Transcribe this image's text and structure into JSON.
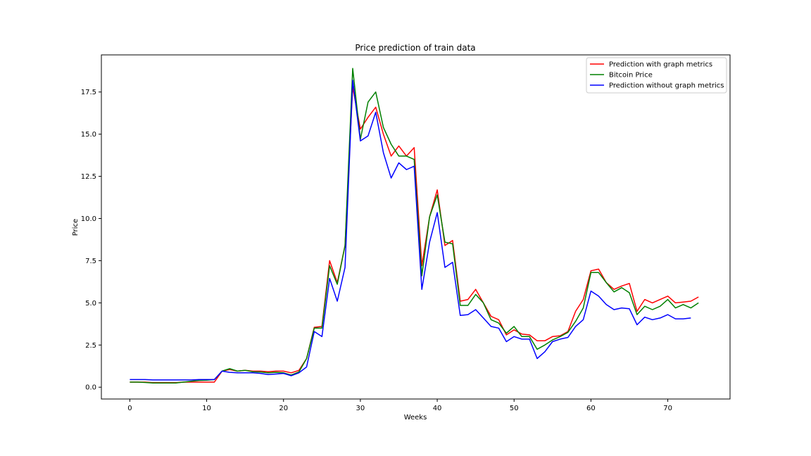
{
  "chart_data": {
    "type": "line",
    "title": "Price prediction of train data",
    "xlabel": "Weeks",
    "ylabel": "Price",
    "xlim": [
      -3.7,
      78.1
    ],
    "ylim": [
      -0.7,
      19.7
    ],
    "xticks": [
      0,
      10,
      20,
      30,
      40,
      50,
      60,
      70
    ],
    "yticks": [
      0.0,
      2.5,
      5.0,
      7.5,
      10.0,
      12.5,
      15.0,
      17.5
    ],
    "xtick_labels": [
      "0",
      "10",
      "20",
      "30",
      "40",
      "50",
      "60",
      "70"
    ],
    "ytick_labels": [
      "0.0",
      "2.5",
      "5.0",
      "7.5",
      "10.0",
      "12.5",
      "15.0",
      "17.5"
    ],
    "grid": false,
    "legend_position": "top-right",
    "series": [
      {
        "name": "Prediction with graph metrics",
        "color": "#ff0000",
        "x": [
          0,
          1,
          2,
          3,
          4,
          5,
          6,
          7,
          8,
          9,
          10,
          11,
          12,
          13,
          14,
          15,
          16,
          17,
          18,
          19,
          20,
          21,
          22,
          23,
          24,
          25,
          26,
          27,
          28,
          29,
          30,
          31,
          32,
          33,
          34,
          35,
          36,
          37,
          38,
          39,
          40,
          41,
          42,
          43,
          44,
          45,
          46,
          47,
          48,
          49,
          50,
          51,
          52,
          53,
          54,
          55,
          56,
          57,
          58,
          59,
          60,
          61,
          62,
          63,
          64,
          65,
          66,
          67,
          68,
          69,
          70,
          71,
          72,
          73,
          74
        ],
        "y": [
          0.3,
          0.3,
          0.3,
          0.27,
          0.27,
          0.27,
          0.27,
          0.3,
          0.3,
          0.3,
          0.3,
          0.3,
          0.95,
          1.05,
          0.95,
          1.0,
          0.95,
          0.95,
          0.92,
          0.95,
          0.95,
          0.85,
          1.0,
          1.7,
          3.55,
          3.6,
          7.5,
          6.2,
          8.4,
          17.8,
          15.3,
          16.0,
          16.6,
          15.0,
          13.7,
          14.3,
          13.7,
          14.2,
          7.2,
          10.1,
          11.7,
          8.4,
          8.7,
          5.1,
          5.2,
          5.8,
          5.0,
          4.2,
          4.0,
          3.1,
          3.4,
          3.15,
          3.1,
          2.75,
          2.75,
          3.0,
          3.05,
          3.3,
          4.5,
          5.2,
          6.9,
          7.0,
          6.2,
          5.8,
          6.0,
          6.15,
          4.5,
          5.2,
          5.0,
          5.2,
          5.4,
          5.0,
          5.05,
          5.1,
          5.35
        ]
      },
      {
        "name": "Bitcoin Price",
        "color": "#008000",
        "x": [
          0,
          1,
          2,
          3,
          4,
          5,
          6,
          7,
          8,
          9,
          10,
          11,
          12,
          13,
          14,
          15,
          16,
          17,
          18,
          19,
          20,
          21,
          22,
          23,
          24,
          25,
          26,
          27,
          28,
          29,
          30,
          31,
          32,
          33,
          34,
          35,
          36,
          37,
          38,
          39,
          40,
          41,
          42,
          43,
          44,
          45,
          46,
          47,
          48,
          49,
          50,
          51,
          52,
          53,
          54,
          55,
          56,
          57,
          58,
          59,
          60,
          61,
          62,
          63,
          64,
          65,
          66,
          67,
          68,
          69,
          70,
          71,
          72,
          73,
          74
        ],
        "y": [
          0.3,
          0.3,
          0.28,
          0.25,
          0.25,
          0.25,
          0.25,
          0.3,
          0.35,
          0.4,
          0.42,
          0.45,
          0.95,
          1.1,
          0.95,
          1.0,
          0.92,
          0.9,
          0.85,
          0.88,
          0.85,
          0.72,
          0.9,
          1.7,
          3.5,
          3.5,
          7.2,
          6.1,
          8.4,
          18.9,
          14.7,
          16.9,
          17.5,
          15.4,
          14.4,
          13.7,
          13.7,
          13.5,
          6.6,
          10.1,
          11.4,
          8.6,
          8.5,
          4.85,
          4.85,
          5.5,
          5.0,
          4.0,
          3.8,
          3.2,
          3.6,
          3.0,
          3.0,
          2.25,
          2.5,
          2.8,
          3.0,
          3.25,
          3.9,
          4.7,
          6.8,
          6.8,
          6.2,
          5.65,
          5.9,
          5.6,
          4.3,
          4.8,
          4.6,
          4.8,
          5.2,
          4.7,
          4.9,
          4.7,
          5.0
        ]
      },
      {
        "name": "Prediction without graph metrics",
        "color": "#0000ff",
        "x": [
          0,
          1,
          2,
          3,
          4,
          5,
          6,
          7,
          8,
          9,
          10,
          11,
          12,
          13,
          14,
          15,
          16,
          17,
          18,
          19,
          20,
          21,
          22,
          23,
          24,
          25,
          26,
          27,
          28,
          29,
          30,
          31,
          32,
          33,
          34,
          35,
          36,
          37,
          38,
          39,
          40,
          41,
          42,
          43,
          44,
          45,
          46,
          47,
          48,
          49,
          50,
          51,
          52,
          53,
          54,
          55,
          56,
          57,
          58,
          59,
          60,
          61,
          62,
          63,
          64,
          65,
          66,
          67,
          68,
          69,
          70,
          71,
          72,
          73
        ],
        "y": [
          0.45,
          0.45,
          0.45,
          0.43,
          0.43,
          0.43,
          0.43,
          0.43,
          0.43,
          0.45,
          0.45,
          0.45,
          0.95,
          0.88,
          0.85,
          0.85,
          0.85,
          0.82,
          0.75,
          0.78,
          0.82,
          0.68,
          0.85,
          1.2,
          3.3,
          3.0,
          6.45,
          5.1,
          7.1,
          18.2,
          14.6,
          14.9,
          16.3,
          13.9,
          12.4,
          13.3,
          12.9,
          13.1,
          5.8,
          8.6,
          10.35,
          7.1,
          7.4,
          4.25,
          4.3,
          4.6,
          4.1,
          3.6,
          3.5,
          2.7,
          3.0,
          2.85,
          2.85,
          1.7,
          2.1,
          2.7,
          2.85,
          2.95,
          3.6,
          4.0,
          5.7,
          5.4,
          4.9,
          4.6,
          4.7,
          4.65,
          3.7,
          4.15,
          4.0,
          4.1,
          4.3,
          4.05,
          4.05,
          4.1
        ]
      }
    ]
  }
}
